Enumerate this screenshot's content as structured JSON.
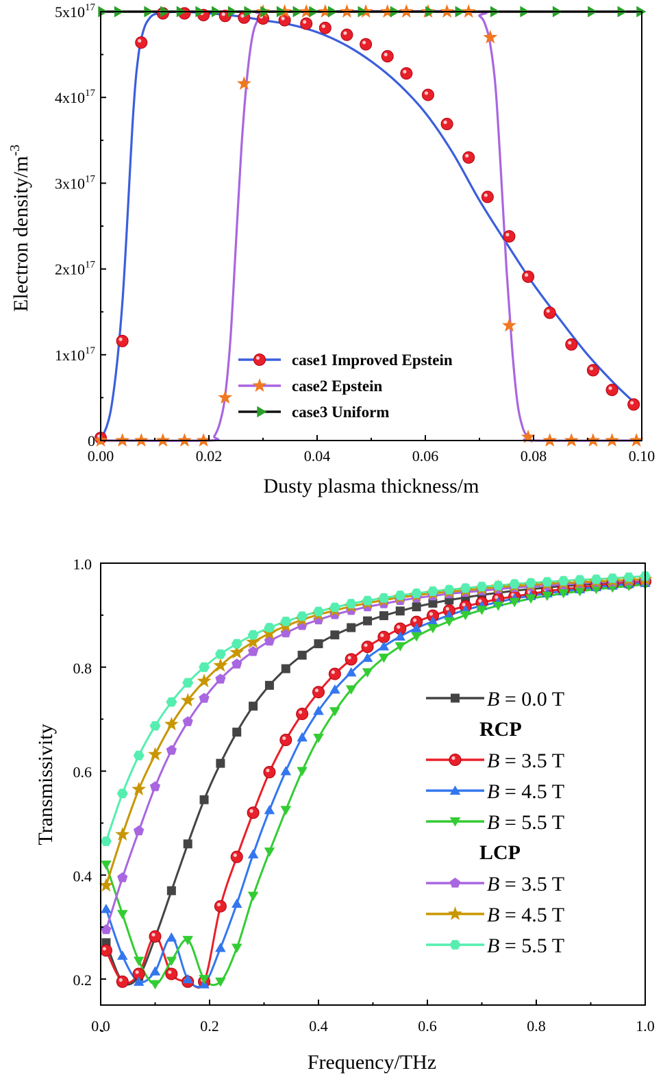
{
  "chart_data": [
    {
      "type": "line",
      "title": "",
      "xlabel": "Dusty plasma thickness/m",
      "ylabel": "Electron density/m",
      "ylabel_sup": "-3",
      "xlim": [
        0,
        0.1
      ],
      "ylim": [
        0,
        5e+17
      ],
      "x_ticks": [
        0,
        0.02,
        0.04,
        0.06,
        0.08,
        0.1
      ],
      "x_tick_labels": [
        "0.00",
        "0.02",
        "0.04",
        "0.06",
        "0.08",
        "0.10"
      ],
      "y_ticks": [
        0,
        1e+17,
        2e+17,
        3e+17,
        4e+17,
        5e+17
      ],
      "y_tick_labels": [
        {
          "base": "0",
          "exp": ""
        },
        {
          "base": "1x10",
          "exp": "17"
        },
        {
          "base": "2x10",
          "exp": "17"
        },
        {
          "base": "3x10",
          "exp": "17"
        },
        {
          "base": "4x10",
          "exp": "17"
        },
        {
          "base": "5x10",
          "exp": "17"
        }
      ],
      "legend_position": "bottom-center",
      "series": [
        {
          "name": "case1 Improved Epstein",
          "color": "#3b5fdc",
          "marker": "circle",
          "marker_color": "#e8202a",
          "x": [
            0,
            0.002,
            0.004,
            0.006,
            0.007,
            0.008,
            0.009,
            0.01,
            0.012,
            0.015,
            0.02,
            0.025,
            0.03,
            0.035,
            0.04,
            0.045,
            0.05,
            0.055,
            0.06,
            0.065,
            0.07,
            0.075,
            0.08,
            0.085,
            0.09,
            0.095,
            0.099
          ],
          "y": [
            0,
            4e+16,
            1.6e+17,
            3.8e+17,
            4.5e+17,
            4.8e+17,
            4.92e+17,
            4.97e+17,
            4.99e+17,
            5e+17,
            4.98e+17,
            4.95e+17,
            4.9e+17,
            4.85e+17,
            4.76e+17,
            4.62e+17,
            4.42e+17,
            4.16e+17,
            3.82e+17,
            3.36e+17,
            2.8e+17,
            2.3e+17,
            1.82e+17,
            1.4e+17,
            1e+17,
            6.6e+16,
            4.2e+16
          ],
          "marker_x": [
            0,
            0.004,
            0.0075,
            0.0115,
            0.0155,
            0.019,
            0.023,
            0.0265,
            0.03,
            0.034,
            0.038,
            0.0415,
            0.0455,
            0.049,
            0.053,
            0.0565,
            0.0605,
            0.064,
            0.068,
            0.0715,
            0.0755,
            0.079,
            0.083,
            0.087,
            0.091,
            0.0945,
            0.0985
          ],
          "marker_y": [
            3000000000000000.0,
            1.16e+17,
            4.64e+17,
            4.98e+17,
            4.98e+17,
            4.96e+17,
            4.95e+17,
            4.93e+17,
            4.92e+17,
            4.9e+17,
            4.86e+17,
            4.81e+17,
            4.73e+17,
            4.62e+17,
            4.48e+17,
            4.28e+17,
            4.03e+17,
            3.69e+17,
            3.3e+17,
            2.84e+17,
            2.38e+17,
            1.91e+17,
            1.49e+17,
            1.12e+17,
            8.2e+16,
            5.9e+16,
            4.2e+16
          ]
        },
        {
          "name": "case2 Epstein",
          "color": "#a866e0",
          "marker": "star",
          "marker_color": "#f07820",
          "x": [
            0,
            0.02,
            0.021,
            0.022,
            0.023,
            0.024,
            0.025,
            0.026,
            0.027,
            0.028,
            0.029,
            0.03,
            0.032,
            0.068,
            0.07,
            0.071,
            0.072,
            0.073,
            0.074,
            0.075,
            0.076,
            0.077,
            0.078,
            0.079,
            0.08,
            0.1
          ],
          "y": [
            0,
            0,
            5000000000000000.0,
            2e+16,
            5.2e+16,
            1.2e+17,
            2.3e+17,
            3.4e+17,
            4.2e+17,
            4.7e+17,
            4.9e+17,
            4.97e+17,
            5e+17,
            5e+17,
            4.95e+17,
            4.86e+17,
            4.62e+17,
            4.1e+17,
            3.1e+17,
            2e+17,
            1.1e+17,
            4.5e+16,
            1.5e+16,
            4000000000000000.0,
            0,
            0
          ],
          "marker_x": [
            0,
            0.004,
            0.0075,
            0.0115,
            0.0155,
            0.019,
            0.023,
            0.0265,
            0.03,
            0.034,
            0.038,
            0.0415,
            0.0455,
            0.049,
            0.053,
            0.0565,
            0.0605,
            0.064,
            0.068,
            0.072,
            0.0755,
            0.079,
            0.083,
            0.087,
            0.091,
            0.0945,
            0.099
          ],
          "marker_y": [
            0,
            0,
            0,
            0,
            0,
            0,
            5e+16,
            4.16e+17,
            5e+17,
            5e+17,
            5e+17,
            5e+17,
            5e+17,
            5e+17,
            5e+17,
            5e+17,
            5e+17,
            5e+17,
            5e+17,
            4.7e+17,
            1.34e+17,
            4000000000000000.0,
            0,
            0,
            0,
            0,
            0
          ]
        },
        {
          "name": "case3 Uniform",
          "color": "#111111",
          "marker": "triangle-right",
          "marker_color": "#2aa02a",
          "x": [
            0,
            0.1
          ],
          "y": [
            5e+17,
            5e+17
          ],
          "marker_x": [
            0,
            0.003,
            0.0085,
            0.0115,
            0.0145,
            0.018,
            0.021,
            0.024,
            0.027,
            0.03,
            0.033,
            0.036,
            0.039,
            0.0425,
            0.048,
            0.054,
            0.0605,
            0.066,
            0.0725,
            0.078,
            0.084,
            0.0905,
            0.096,
            0.0995
          ],
          "marker_y": [
            5e+17,
            5e+17,
            5e+17,
            5e+17,
            5e+17,
            5e+17,
            5e+17,
            5e+17,
            5e+17,
            5e+17,
            5e+17,
            5e+17,
            5e+17,
            5e+17,
            5e+17,
            5e+17,
            5e+17,
            5e+17,
            5e+17,
            5e+17,
            5e+17,
            5e+17,
            5e+17,
            5e+17
          ]
        }
      ]
    },
    {
      "type": "line",
      "title": "",
      "xlabel": "Frequency/THz",
      "ylabel": "Transmissivity",
      "xlim": [
        0,
        1.0
      ],
      "ylim": [
        0.15,
        1.0
      ],
      "x_ticks": [
        0,
        0.2,
        0.4,
        0.6,
        0.8,
        1.0
      ],
      "x_tick_labels": [
        "0.0",
        "0.2",
        "0.4",
        "0.6",
        "0.8",
        "1.0"
      ],
      "y_ticks": [
        0.2,
        0.4,
        0.6,
        0.8,
        1.0
      ],
      "y_tick_labels": [
        "0.2",
        "0.4",
        "0.6",
        "0.8",
        "1.0"
      ],
      "legend_position": "right",
      "legend_groups": [
        "RCP",
        "LCP"
      ],
      "legend_var": "B",
      "series": [
        {
          "name": "B = 0.0 T",
          "value_label": " = 0.0 T",
          "group": "",
          "color": "#444444",
          "marker": "square",
          "x": [
            0.01,
            0.04,
            0.07,
            0.1,
            0.13,
            0.16,
            0.19,
            0.22,
            0.25,
            0.28,
            0.31,
            0.34,
            0.37,
            0.4,
            0.43,
            0.46,
            0.49,
            0.52,
            0.55,
            0.58,
            0.61,
            0.64,
            0.67,
            0.7,
            0.73,
            0.76,
            0.79,
            0.82,
            0.85,
            0.88,
            0.91,
            0.94,
            0.97,
            1.0
          ],
          "y": [
            0.27,
            0.195,
            0.205,
            0.28,
            0.37,
            0.46,
            0.545,
            0.615,
            0.675,
            0.725,
            0.765,
            0.797,
            0.823,
            0.845,
            0.862,
            0.876,
            0.889,
            0.899,
            0.908,
            0.916,
            0.923,
            0.929,
            0.934,
            0.939,
            0.943,
            0.947,
            0.95,
            0.953,
            0.956,
            0.958,
            0.961,
            0.963,
            0.965,
            0.967
          ]
        },
        {
          "name": "B = 3.5 T",
          "value_label": " = 3.5 T",
          "group": "RCP",
          "color": "#e8202a",
          "marker": "circle",
          "x": [
            0.01,
            0.04,
            0.07,
            0.1,
            0.13,
            0.16,
            0.19,
            0.22,
            0.25,
            0.28,
            0.31,
            0.34,
            0.37,
            0.4,
            0.43,
            0.46,
            0.49,
            0.52,
            0.55,
            0.58,
            0.61,
            0.64,
            0.67,
            0.7,
            0.73,
            0.76,
            0.79,
            0.82,
            0.85,
            0.88,
            0.91,
            0.94,
            0.97,
            1.0
          ],
          "y": [
            0.255,
            0.195,
            0.21,
            0.282,
            0.21,
            0.195,
            0.195,
            0.34,
            0.435,
            0.52,
            0.598,
            0.66,
            0.71,
            0.752,
            0.787,
            0.815,
            0.839,
            0.858,
            0.874,
            0.887,
            0.899,
            0.909,
            0.917,
            0.924,
            0.931,
            0.936,
            0.941,
            0.946,
            0.95,
            0.953,
            0.957,
            0.96,
            0.962,
            0.965
          ]
        },
        {
          "name": "B = 4.5 T",
          "value_label": " = 4.5 T",
          "group": "RCP",
          "color": "#3377ee",
          "marker": "triangle-up",
          "x": [
            0.01,
            0.04,
            0.07,
            0.1,
            0.13,
            0.16,
            0.19,
            0.22,
            0.25,
            0.28,
            0.31,
            0.34,
            0.37,
            0.4,
            0.43,
            0.46,
            0.49,
            0.52,
            0.55,
            0.58,
            0.61,
            0.64,
            0.67,
            0.7,
            0.73,
            0.76,
            0.79,
            0.82,
            0.85,
            0.88,
            0.91,
            0.94,
            0.97,
            1.0
          ],
          "y": [
            0.335,
            0.245,
            0.195,
            0.215,
            0.28,
            0.2,
            0.19,
            0.26,
            0.345,
            0.44,
            0.525,
            0.6,
            0.665,
            0.716,
            0.757,
            0.79,
            0.818,
            0.84,
            0.859,
            0.875,
            0.888,
            0.9,
            0.91,
            0.918,
            0.925,
            0.932,
            0.937,
            0.942,
            0.946,
            0.95,
            0.954,
            0.957,
            0.96,
            0.962
          ]
        },
        {
          "name": "B = 5.5 T",
          "value_label": " = 5.5 T",
          "group": "RCP",
          "color": "#33cc33",
          "marker": "triangle-down",
          "x": [
            0.01,
            0.04,
            0.07,
            0.1,
            0.13,
            0.16,
            0.19,
            0.22,
            0.25,
            0.28,
            0.31,
            0.34,
            0.37,
            0.4,
            0.43,
            0.46,
            0.49,
            0.52,
            0.55,
            0.58,
            0.61,
            0.64,
            0.67,
            0.7,
            0.73,
            0.76,
            0.79,
            0.82,
            0.85,
            0.88,
            0.91,
            0.94,
            0.97,
            1.0
          ],
          "y": [
            0.42,
            0.325,
            0.235,
            0.19,
            0.235,
            0.275,
            0.2,
            0.195,
            0.26,
            0.36,
            0.445,
            0.525,
            0.6,
            0.664,
            0.715,
            0.757,
            0.79,
            0.818,
            0.84,
            0.859,
            0.875,
            0.888,
            0.9,
            0.91,
            0.918,
            0.925,
            0.932,
            0.937,
            0.942,
            0.946,
            0.95,
            0.953,
            0.956,
            0.959
          ]
        },
        {
          "name": "B = 3.5 T",
          "value_label": " = 3.5 T",
          "group": "LCP",
          "color": "#a866e0",
          "marker": "pentagon",
          "x": [
            0.01,
            0.04,
            0.07,
            0.1,
            0.13,
            0.16,
            0.19,
            0.22,
            0.25,
            0.28,
            0.31,
            0.34,
            0.37,
            0.4,
            0.43,
            0.46,
            0.49,
            0.52,
            0.55,
            0.58,
            0.61,
            0.64,
            0.67,
            0.7,
            0.73,
            0.76,
            0.79,
            0.82,
            0.85,
            0.88,
            0.91,
            0.94,
            0.97,
            1.0
          ],
          "y": [
            0.295,
            0.395,
            0.485,
            0.57,
            0.64,
            0.695,
            0.74,
            0.777,
            0.806,
            0.83,
            0.85,
            0.866,
            0.88,
            0.891,
            0.901,
            0.909,
            0.916,
            0.922,
            0.928,
            0.933,
            0.937,
            0.941,
            0.944,
            0.947,
            0.95,
            0.953,
            0.955,
            0.957,
            0.959,
            0.961,
            0.963,
            0.964,
            0.966,
            0.967
          ]
        },
        {
          "name": "B = 4.5 T",
          "value_label": " = 4.5 T",
          "group": "LCP",
          "color": "#c89600",
          "marker": "star",
          "x": [
            0.01,
            0.04,
            0.07,
            0.1,
            0.13,
            0.16,
            0.19,
            0.22,
            0.25,
            0.28,
            0.31,
            0.34,
            0.37,
            0.4,
            0.43,
            0.46,
            0.49,
            0.52,
            0.55,
            0.58,
            0.61,
            0.64,
            0.67,
            0.7,
            0.73,
            0.76,
            0.79,
            0.82,
            0.85,
            0.88,
            0.91,
            0.94,
            0.97,
            1.0
          ],
          "y": [
            0.38,
            0.478,
            0.565,
            0.632,
            0.69,
            0.736,
            0.773,
            0.803,
            0.828,
            0.848,
            0.865,
            0.879,
            0.891,
            0.901,
            0.909,
            0.917,
            0.923,
            0.929,
            0.934,
            0.938,
            0.942,
            0.945,
            0.948,
            0.951,
            0.954,
            0.956,
            0.958,
            0.96,
            0.962,
            0.963,
            0.965,
            0.966,
            0.968,
            0.969
          ]
        },
        {
          "name": "B = 5.5 T",
          "value_label": " = 5.5 T",
          "group": "LCP",
          "color": "#55eeb0",
          "marker": "hexagon",
          "x": [
            0.01,
            0.04,
            0.07,
            0.1,
            0.13,
            0.16,
            0.19,
            0.22,
            0.25,
            0.28,
            0.31,
            0.34,
            0.37,
            0.4,
            0.43,
            0.46,
            0.49,
            0.52,
            0.55,
            0.58,
            0.61,
            0.64,
            0.67,
            0.7,
            0.73,
            0.76,
            0.79,
            0.82,
            0.85,
            0.88,
            0.91,
            0.94,
            0.97,
            1.0
          ],
          "y": [
            0.465,
            0.557,
            0.63,
            0.687,
            0.733,
            0.77,
            0.8,
            0.825,
            0.845,
            0.862,
            0.876,
            0.888,
            0.898,
            0.907,
            0.915,
            0.922,
            0.928,
            0.933,
            0.938,
            0.942,
            0.946,
            0.949,
            0.952,
            0.955,
            0.957,
            0.96,
            0.962,
            0.964,
            0.966,
            0.968,
            0.969,
            0.971,
            0.973,
            0.975
          ]
        }
      ]
    }
  ]
}
